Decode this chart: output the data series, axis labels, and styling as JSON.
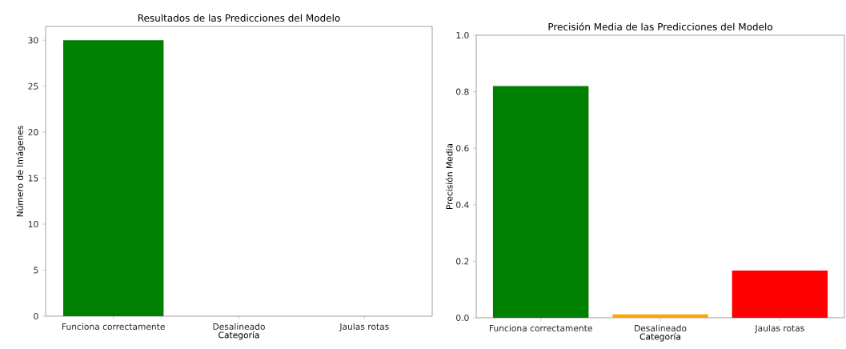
{
  "chart_data": [
    {
      "type": "bar",
      "title": "Resultados de las Predicciones del Modelo",
      "xlabel": "Categoría",
      "ylabel": "Número de Imágenes",
      "categories": [
        "Funciona correctamente",
        "Desalineado",
        "Jaulas rotas"
      ],
      "values": [
        30,
        0,
        0
      ],
      "color": "#008000",
      "ylim": [
        0,
        31.5
      ],
      "yticks": [
        0,
        5,
        10,
        15,
        20,
        25,
        30
      ]
    },
    {
      "type": "bar",
      "title": "Precisión Media de las Predicciones del Modelo",
      "xlabel": "Categoría",
      "ylabel": "Precisión Media",
      "categories": [
        "Funciona correctamente",
        "Desalineado",
        "Jaulas rotas"
      ],
      "values": [
        0.82,
        0.012,
        0.167
      ],
      "colors": [
        "#008000",
        "#ffa500",
        "#ff0000"
      ],
      "ylim": [
        0,
        1
      ],
      "yticks": [
        {
          "value": 0,
          "label": "0.0"
        },
        {
          "value": 0.2,
          "label": "0.2"
        },
        {
          "value": 0.4,
          "label": "0.4"
        },
        {
          "value": 0.6,
          "label": "0.6"
        },
        {
          "value": 0.8,
          "label": "0.8"
        },
        {
          "value": 1,
          "label": "1.0"
        }
      ]
    }
  ]
}
